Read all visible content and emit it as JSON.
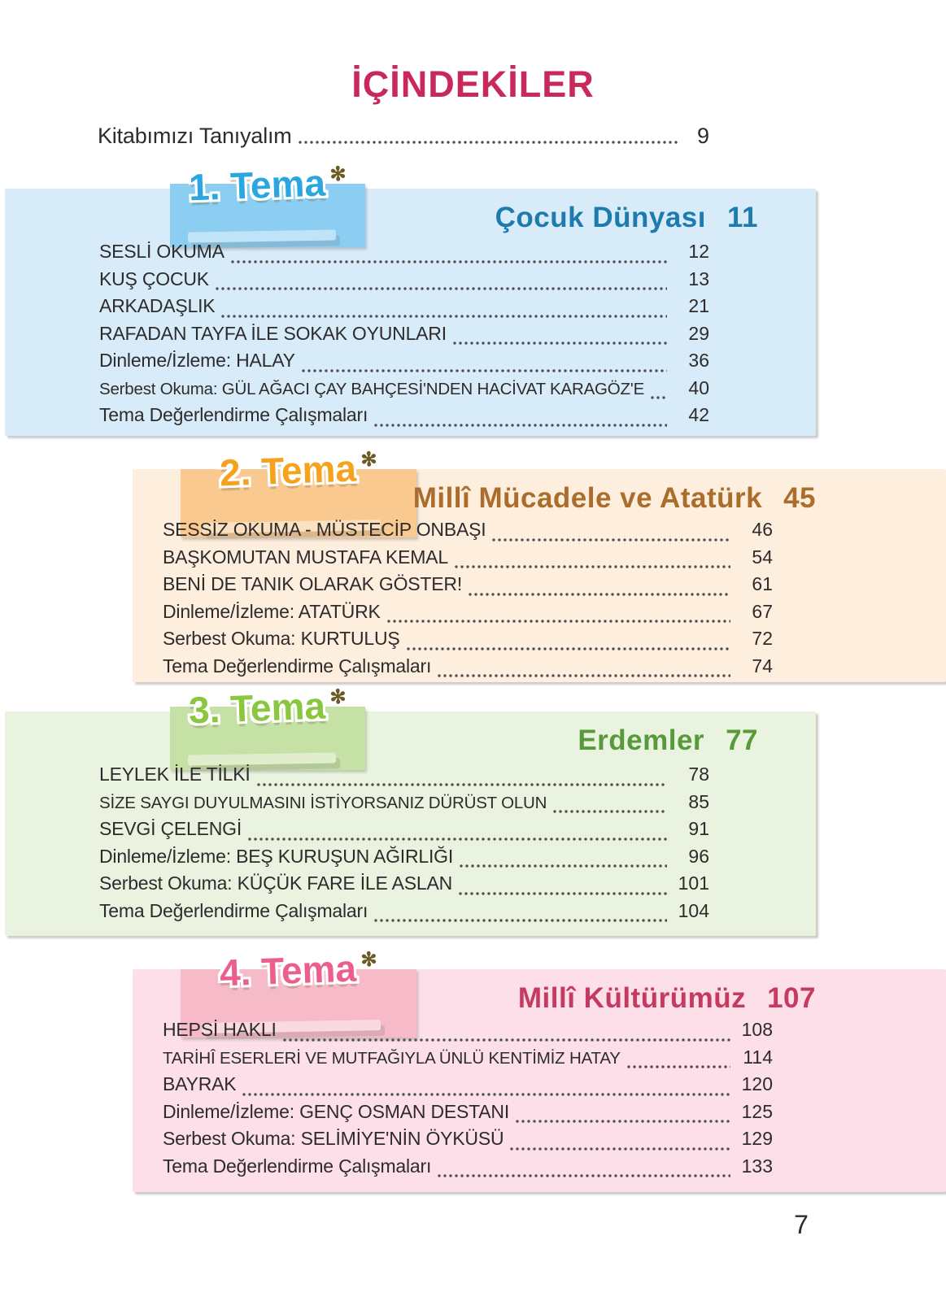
{
  "page": {
    "title": "İÇİNDEKİLER",
    "number": "7"
  },
  "badge_decor": "✻",
  "intro": {
    "label": "Kitabımızı Tanıyalım",
    "page": "9"
  },
  "sections": [
    {
      "badge": "1. Tema",
      "title": "Çocuk Dünyası",
      "title_page": "11",
      "align": "left",
      "colors": {
        "panel": "#d8ebf9",
        "badge_box": "#8bcef2",
        "badge_text": "#2aa7e0",
        "title": "#1d7bad"
      },
      "items": [
        {
          "label": "SESLİ OKUMA",
          "page": "12"
        },
        {
          "label": "KUŞ ÇOCUK",
          "page": "13"
        },
        {
          "label": "ARKADAŞLIK",
          "page": "21"
        },
        {
          "label": "RAFADAN TAYFA İLE SOKAK OYUNLARI",
          "page": "29"
        },
        {
          "label": "Dinleme/İzleme: HALAY",
          "page": "36"
        },
        {
          "label": "Serbest Okuma: GÜL AĞACI ÇAY BAHÇESİ'NDEN HACİVAT KARAGÖZ'E",
          "page": "40"
        },
        {
          "label": "Tema Değerlendirme Çalışmaları",
          "page": "42"
        }
      ]
    },
    {
      "badge": "2. Tema",
      "title": "Millî Mücadele ve Atatürk",
      "title_page": "45",
      "align": "right",
      "colors": {
        "panel": "#fdeedd",
        "badge_box": "#f9c98f",
        "badge_text": "#f5a21c",
        "title": "#aa6d2b"
      },
      "items": [
        {
          "label": "SESSİZ OKUMA - MÜSTECİP ONBAŞI",
          "page": "46"
        },
        {
          "label": "BAŞKOMUTAN MUSTAFA KEMAL",
          "page": "54"
        },
        {
          "label": "BENİ DE TANIK OLARAK GÖSTER!",
          "page": "61"
        },
        {
          "label": "Dinleme/İzleme: ATATÜRK",
          "page": "67"
        },
        {
          "label": "Serbest Okuma: KURTULUŞ",
          "page": "72"
        },
        {
          "label": "Tema Değerlendirme Çalışmaları",
          "page": "74"
        }
      ]
    },
    {
      "badge": "3. Tema",
      "title": "Erdemler",
      "title_page": "77",
      "align": "left",
      "colors": {
        "panel": "#eaf3df",
        "badge_box": "#c6e1a5",
        "badge_text": "#8bc63f",
        "title": "#569a3c"
      },
      "items": [
        {
          "label": "LEYLEK İLE TİLKİ",
          "page": "78"
        },
        {
          "label": "SİZE SAYGI DUYULMASINI İSTİYORSANIZ DÜRÜST OLUN",
          "page": "85"
        },
        {
          "label": "SEVGİ ÇELENGİ",
          "page": "91"
        },
        {
          "label": "Dinleme/İzleme: BEŞ KURUŞUN AĞIRLIĞI",
          "page": "96"
        },
        {
          "label": "Serbest Okuma: KÜÇÜK FARE İLE ASLAN",
          "page": "101"
        },
        {
          "label": "Tema Değerlendirme Çalışmaları",
          "page": "104"
        }
      ]
    },
    {
      "badge": "4. Tema",
      "title": "Millî Kültürümüz",
      "title_page": "107",
      "align": "right",
      "colors": {
        "panel": "#fcdfe8",
        "badge_box": "#f6bac9",
        "badge_text": "#eb5e8d",
        "title": "#c43a60"
      },
      "items": [
        {
          "label": "HEPSİ HAKLI",
          "page": "108"
        },
        {
          "label": "TARİHÎ ESERLERİ VE MUTFAĞIYLA ÜNLÜ KENTİMİZ HATAY",
          "page": "114"
        },
        {
          "label": "BAYRAK",
          "page": "120"
        },
        {
          "label": "Dinleme/İzleme: GENÇ OSMAN DESTANI",
          "page": "125"
        },
        {
          "label": "Serbest Okuma: SELİMİYE'NİN ÖYKÜSÜ",
          "page": "129"
        },
        {
          "label": "Tema Değerlendirme Çalışmaları",
          "page": "133"
        }
      ]
    }
  ]
}
